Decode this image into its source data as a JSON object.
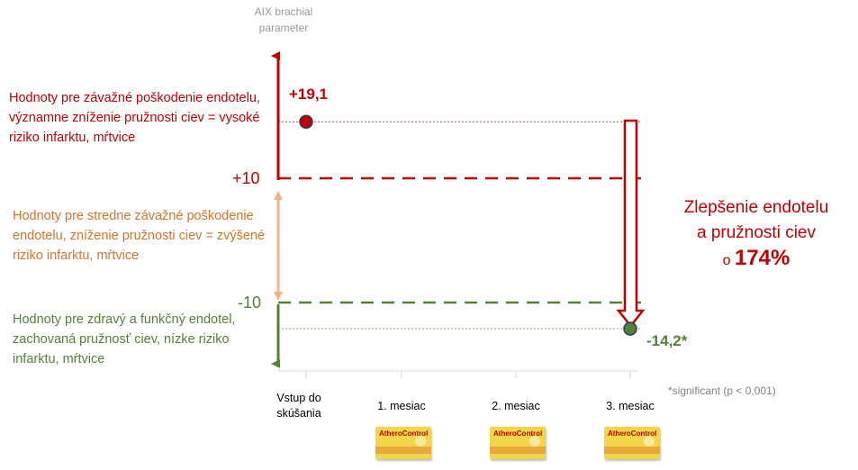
{
  "chart_data": {
    "type": "scatter",
    "ylabel": "AIX brachial parameter",
    "categories": [
      "Vstup do skúšania",
      "1. mesiac",
      "2. mesiac",
      "3. mesiac"
    ],
    "series": [
      {
        "points": [
          {
            "category": "Vstup do skúšania",
            "value": 19.1,
            "label": "+19,1",
            "color": "#c00000"
          },
          {
            "category": "3. mesiac",
            "value": -14.2,
            "label": "-14,2*",
            "color": "#548235"
          }
        ]
      }
    ],
    "thresholds": [
      {
        "value": 10,
        "label": "+10",
        "color": "#c00000"
      },
      {
        "value": -10,
        "label": "-10",
        "color": "#548235"
      }
    ],
    "zones": [
      {
        "text": "Hodnoty pre závažné poškodenie endotelu, významne zníženie pružnosti ciev = vysoké riziko infarktu, mŕtvice",
        "color": "#c00000"
      },
      {
        "text": "Hodnoty pre stredne závažné poškodenie endotelu, zníženie pružnosti ciev = zvýšené riziko infarktu, mŕtvice",
        "color": "#d9722b"
      },
      {
        "text": "Hodnoty pre zdravý a funkčný endotel, zachovaná pružnosť ciev, nízke riziko infarktu, mŕtvice",
        "color": "#548235"
      }
    ],
    "annotation": {
      "line1": "Zlepšenie endotelu",
      "line2": "a pružnosti ciev",
      "prefix": "o",
      "percent": "174%"
    },
    "footnote": "*significant (p < 0,001)",
    "product_label": "AtheroControl"
  }
}
